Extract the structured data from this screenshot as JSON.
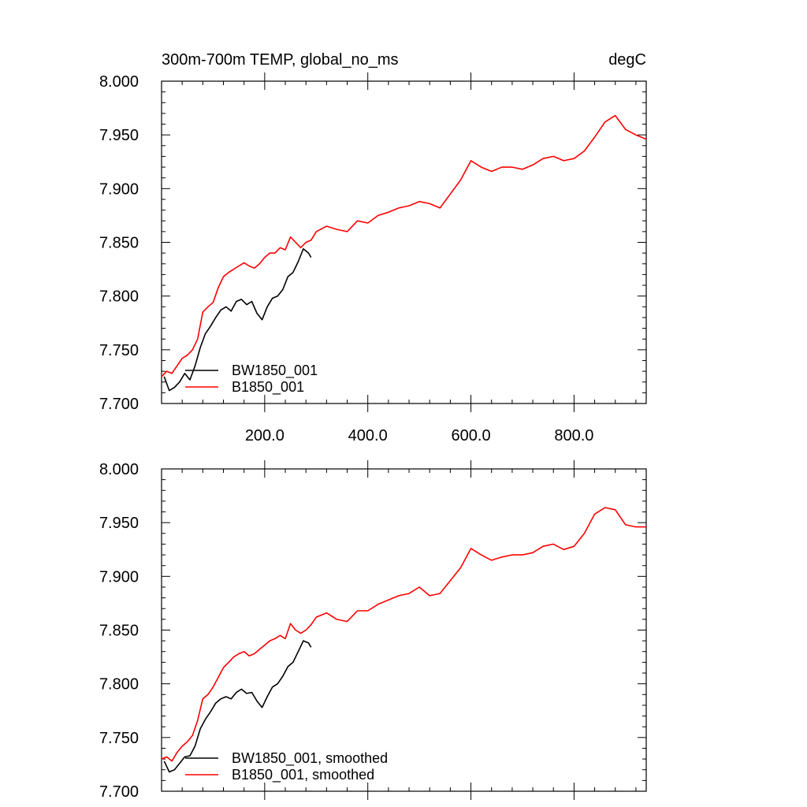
{
  "figure": {
    "title_left": "300m-700m TEMP, global_no_ms",
    "title_right": "degC"
  },
  "chart_data": [
    {
      "type": "line",
      "panel": "top",
      "xlim": [
        0,
        940
      ],
      "ylim": [
        7.7,
        8.0
      ],
      "yticks": [
        7.7,
        7.75,
        7.8,
        7.85,
        7.9,
        7.95,
        8.0
      ],
      "ytick_labels": [
        "7.700",
        "7.750",
        "7.800",
        "7.850",
        "7.900",
        "7.950",
        "8.000"
      ],
      "xticks": [
        200,
        400,
        600,
        800
      ],
      "xtick_labels": [
        "200.0",
        "400.0",
        "600.0",
        "800.0"
      ],
      "legend_position": "bottom-left",
      "series": [
        {
          "name": "BW1850_001",
          "color": "#000000",
          "x": [
            5,
            15,
            25,
            35,
            45,
            55,
            65,
            75,
            85,
            95,
            105,
            115,
            125,
            135,
            145,
            155,
            165,
            175,
            185,
            195,
            205,
            215,
            225,
            235,
            245,
            255,
            265,
            275,
            285,
            290
          ],
          "y": [
            7.725,
            7.712,
            7.715,
            7.72,
            7.728,
            7.722,
            7.735,
            7.752,
            7.765,
            7.772,
            7.78,
            7.787,
            7.79,
            7.786,
            7.795,
            7.797,
            7.792,
            7.795,
            7.784,
            7.778,
            7.79,
            7.798,
            7.8,
            7.806,
            7.818,
            7.822,
            7.832,
            7.844,
            7.84,
            7.836
          ]
        },
        {
          "name": "B1850_001",
          "color": "#ff0000",
          "x": [
            0,
            10,
            20,
            30,
            40,
            50,
            60,
            70,
            80,
            90,
            100,
            110,
            120,
            130,
            140,
            150,
            160,
            170,
            180,
            190,
            200,
            210,
            220,
            230,
            240,
            250,
            260,
            270,
            280,
            290,
            300,
            320,
            340,
            360,
            380,
            400,
            420,
            440,
            460,
            480,
            500,
            520,
            540,
            560,
            580,
            600,
            620,
            640,
            660,
            680,
            700,
            720,
            740,
            760,
            780,
            800,
            820,
            840,
            860,
            880,
            900,
            920,
            940
          ],
          "y": [
            7.725,
            7.73,
            7.728,
            7.735,
            7.742,
            7.745,
            7.75,
            7.76,
            7.785,
            7.79,
            7.794,
            7.808,
            7.818,
            7.822,
            7.825,
            7.828,
            7.831,
            7.828,
            7.826,
            7.83,
            7.836,
            7.84,
            7.84,
            7.845,
            7.843,
            7.855,
            7.85,
            7.845,
            7.85,
            7.852,
            7.86,
            7.865,
            7.862,
            7.86,
            7.87,
            7.868,
            7.875,
            7.878,
            7.882,
            7.884,
            7.888,
            7.886,
            7.882,
            7.895,
            7.908,
            7.926,
            7.92,
            7.916,
            7.92,
            7.92,
            7.918,
            7.922,
            7.928,
            7.93,
            7.926,
            7.928,
            7.935,
            7.948,
            7.962,
            7.968,
            7.955,
            7.95,
            7.946
          ]
        }
      ]
    },
    {
      "type": "line",
      "panel": "bottom",
      "xlim": [
        0,
        940
      ],
      "ylim": [
        7.7,
        8.0
      ],
      "yticks": [
        7.7,
        7.75,
        7.8,
        7.85,
        7.9,
        7.95,
        8.0
      ],
      "ytick_labels": [
        "7.700",
        "7.750",
        "7.800",
        "7.850",
        "7.900",
        "7.950",
        "8.000"
      ],
      "xticks": [
        200,
        400,
        600,
        800
      ],
      "xtick_labels": [],
      "legend_position": "bottom-left",
      "series": [
        {
          "name": "BW1850_001, smoothed",
          "color": "#000000",
          "x": [
            5,
            15,
            25,
            35,
            45,
            55,
            65,
            75,
            85,
            95,
            105,
            115,
            125,
            135,
            145,
            155,
            165,
            175,
            185,
            195,
            205,
            215,
            225,
            235,
            245,
            255,
            265,
            275,
            285,
            290
          ],
          "y": [
            7.728,
            7.718,
            7.72,
            7.726,
            7.732,
            7.733,
            7.742,
            7.758,
            7.767,
            7.774,
            7.782,
            7.786,
            7.788,
            7.786,
            7.792,
            7.795,
            7.791,
            7.792,
            7.784,
            7.778,
            7.788,
            7.797,
            7.8,
            7.807,
            7.816,
            7.82,
            7.83,
            7.84,
            7.838,
            7.834
          ]
        },
        {
          "name": "B1850_001, smoothed",
          "color": "#ff0000",
          "x": [
            0,
            10,
            20,
            30,
            40,
            50,
            60,
            70,
            80,
            90,
            100,
            110,
            120,
            130,
            140,
            150,
            160,
            170,
            180,
            190,
            200,
            210,
            220,
            230,
            240,
            250,
            260,
            270,
            280,
            290,
            300,
            320,
            340,
            360,
            380,
            400,
            420,
            440,
            460,
            480,
            500,
            520,
            540,
            560,
            580,
            600,
            620,
            640,
            660,
            680,
            700,
            720,
            740,
            760,
            780,
            800,
            820,
            840,
            860,
            880,
            900,
            920,
            940
          ],
          "y": [
            7.73,
            7.732,
            7.728,
            7.736,
            7.742,
            7.746,
            7.752,
            7.766,
            7.786,
            7.79,
            7.797,
            7.806,
            7.815,
            7.82,
            7.825,
            7.828,
            7.83,
            7.826,
            7.828,
            7.832,
            7.836,
            7.84,
            7.842,
            7.845,
            7.842,
            7.856,
            7.85,
            7.847,
            7.85,
            7.855,
            7.862,
            7.866,
            7.86,
            7.858,
            7.868,
            7.868,
            7.874,
            7.878,
            7.882,
            7.884,
            7.89,
            7.882,
            7.884,
            7.896,
            7.908,
            7.926,
            7.92,
            7.915,
            7.918,
            7.92,
            7.92,
            7.922,
            7.928,
            7.93,
            7.925,
            7.928,
            7.94,
            7.958,
            7.964,
            7.962,
            7.948,
            7.946,
            7.946
          ]
        }
      ]
    }
  ]
}
